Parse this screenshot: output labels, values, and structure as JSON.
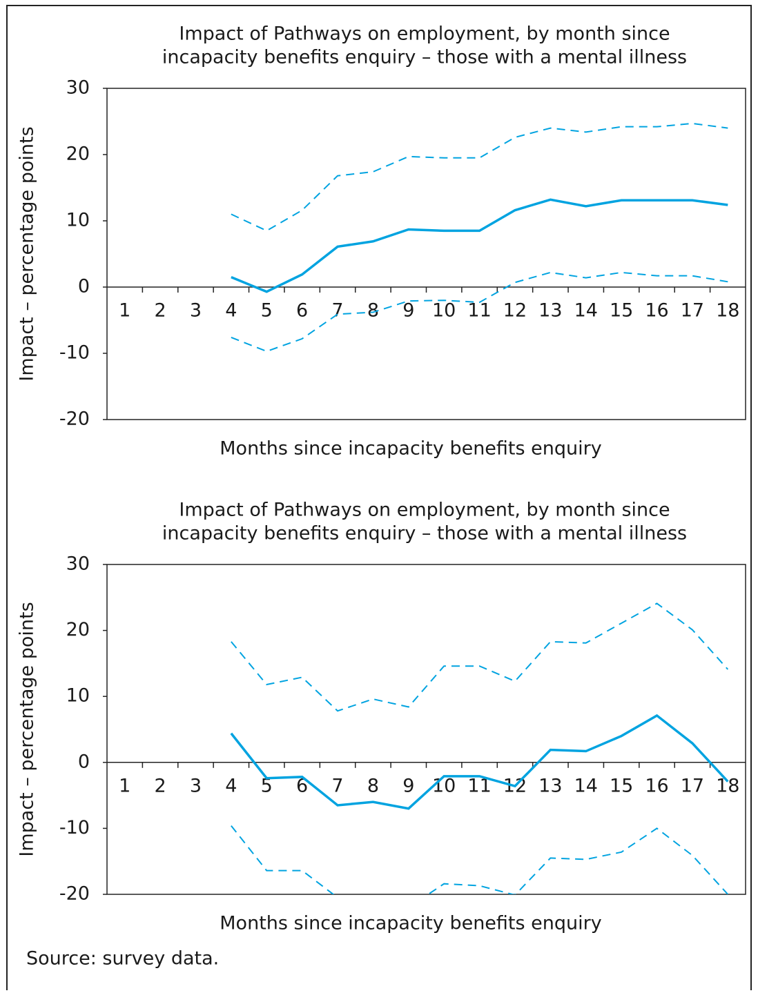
{
  "source": "Source: survey data.",
  "chart_data": [
    {
      "type": "line",
      "title": [
        "Impact of Pathways on employment, by month since",
        "incapacity benefits enquiry – those with a mental illness"
      ],
      "x_label": "Months since incapacity benefits enquiry",
      "y_label": "Impact – percentage points",
      "categories": [
        "1",
        "2",
        "3",
        "4",
        "5",
        "6",
        "7",
        "8",
        "9",
        "10",
        "11",
        "12",
        "13",
        "14",
        "15",
        "16",
        "17",
        "18"
      ],
      "ylim": [
        -20,
        30
      ],
      "yticks": [
        -20,
        -10,
        0,
        10,
        20,
        30
      ],
      "series": [
        {
          "color": "#00a3e0",
          "style": "solid",
          "values": [
            null,
            null,
            null,
            1.5,
            -0.7,
            1.9,
            6.1,
            6.9,
            8.7,
            8.5,
            8.5,
            11.6,
            13.2,
            12.2,
            13.1,
            13.1,
            13.1,
            12.4
          ]
        },
        {
          "color": "#00a3e0",
          "style": "dashed",
          "values": [
            null,
            null,
            null,
            11,
            8.5,
            11.6,
            16.8,
            17.4,
            19.7,
            19.5,
            19.5,
            22.6,
            24,
            23.4,
            24.2,
            24.2,
            24.7,
            24
          ]
        },
        {
          "color": "#00a3e0",
          "style": "dashed",
          "values": [
            null,
            null,
            null,
            -7.6,
            -9.7,
            -7.8,
            -4.1,
            -3.8,
            -2.1,
            -2,
            -2.3,
            0.7,
            2.2,
            1.4,
            2.2,
            1.7,
            1.7,
            0.8
          ]
        }
      ]
    },
    {
      "type": "line",
      "title": [
        "Impact of Pathways on employment, by month since",
        "incapacity benefits enquiry – those with a mental illness"
      ],
      "x_label": "Months since incapacity benefits enquiry",
      "y_label": "Impact – percentage points",
      "categories": [
        "1",
        "2",
        "3",
        "4",
        "5",
        "6",
        "7",
        "8",
        "9",
        "10",
        "11",
        "12",
        "13",
        "14",
        "15",
        "16",
        "17",
        "18"
      ],
      "ylim": [
        -20,
        30
      ],
      "yticks": [
        -20,
        -10,
        0,
        10,
        20,
        30
      ],
      "series": [
        {
          "color": "#00a3e0",
          "style": "solid",
          "values": [
            null,
            null,
            null,
            4.4,
            -2.4,
            -2.2,
            -6.5,
            -6,
            -7,
            -2.1,
            -2.1,
            -3.6,
            1.9,
            1.7,
            4,
            7.1,
            2.9,
            -2.9
          ]
        },
        {
          "color": "#00a3e0",
          "style": "dashed",
          "values": [
            null,
            null,
            null,
            18.3,
            11.8,
            12.9,
            7.8,
            9.6,
            8.4,
            14.6,
            14.6,
            12.3,
            18.3,
            18.1,
            21.1,
            24.1,
            20.1,
            14.1
          ]
        },
        {
          "color": "#00a3e0",
          "style": "dashed",
          "values": [
            null,
            null,
            null,
            -9.6,
            -16.4,
            -16.4,
            -20.5,
            -22,
            -22,
            -18.4,
            -18.7,
            -20.1,
            -14.5,
            -14.7,
            -13.6,
            -10,
            -14.1,
            -20
          ]
        }
      ]
    }
  ]
}
